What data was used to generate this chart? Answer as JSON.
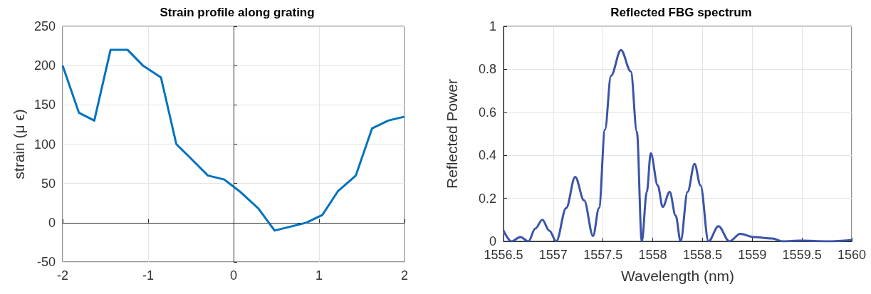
{
  "chart_data": [
    {
      "type": "line",
      "title": "Strain profile along grating",
      "ylabel": "strain (μ ϵ)",
      "color": "#0072bd",
      "x": [
        -2,
        -1.81,
        -1.63,
        -1.44,
        -1.24,
        -1.06,
        -0.85,
        -0.67,
        -0.53,
        -0.3,
        -0.11,
        0.07,
        0.29,
        0.48,
        0.85,
        1.04,
        1.22,
        1.43,
        1.62,
        1.81,
        2
      ],
      "values": [
        200,
        140,
        130,
        220,
        220,
        200,
        185,
        100,
        85,
        60,
        55,
        40,
        18,
        -10,
        0,
        10,
        40,
        60,
        120,
        130,
        135
      ],
      "xlim": [
        -2,
        2
      ],
      "xticks": [
        -2,
        -1,
        0,
        1,
        2
      ],
      "ylim": [
        -50,
        250
      ],
      "yticks": [
        -50,
        0,
        50,
        100,
        150,
        200,
        250
      ],
      "grid": true
    },
    {
      "type": "line",
      "title": "Reflected FBG spectrum",
      "xlabel": "Wavelength (nm)",
      "ylabel": "Reflected Power",
      "color": "#3b54a8",
      "x": [
        1556.5,
        1556.58,
        1556.67,
        1556.75,
        1556.82,
        1556.89,
        1556.96,
        1557.03,
        1557.13,
        1557.22,
        1557.31,
        1557.4,
        1557.46,
        1557.52,
        1557.58,
        1557.68,
        1557.78,
        1557.84,
        1557.89,
        1557.94,
        1557.98,
        1558.05,
        1558.1,
        1558.17,
        1558.23,
        1558.28,
        1558.35,
        1558.42,
        1558.48,
        1558.56,
        1558.66,
        1558.77,
        1558.88,
        1559.01,
        1559.2,
        1559.31,
        1559.48,
        1559.76,
        1560
      ],
      "values": [
        0.05,
        0,
        0.02,
        0,
        0.06,
        0.1,
        0.05,
        0,
        0.155,
        0.3,
        0.19,
        0.025,
        0.155,
        0.52,
        0.77,
        0.89,
        0.79,
        0.51,
        0,
        0.23,
        0.41,
        0.26,
        0.16,
        0.23,
        0.12,
        0,
        0.23,
        0.36,
        0.26,
        0,
        0.07,
        0,
        0.035,
        0.02,
        0.013,
        0,
        0.003,
        0,
        0.006
      ],
      "xlim": [
        1556.5,
        1560
      ],
      "xticks": [
        1556.5,
        1557,
        1557.5,
        1558,
        1558.5,
        1559,
        1559.5,
        1560
      ],
      "ylim": [
        0,
        1
      ],
      "yticks": [
        0,
        0.2,
        0.4,
        0.6,
        0.8,
        1
      ],
      "grid": true
    }
  ]
}
